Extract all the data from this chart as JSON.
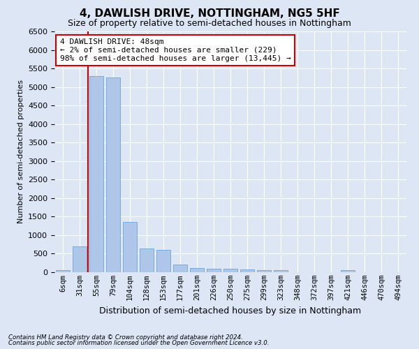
{
  "title": "4, DAWLISH DRIVE, NOTTINGHAM, NG5 5HF",
  "subtitle": "Size of property relative to semi-detached houses in Nottingham",
  "xlabel": "Distribution of semi-detached houses by size in Nottingham",
  "ylabel": "Number of semi-detached properties",
  "categories": [
    "6sqm",
    "31sqm",
    "55sqm",
    "79sqm",
    "104sqm",
    "128sqm",
    "153sqm",
    "177sqm",
    "201sqm",
    "226sqm",
    "250sqm",
    "275sqm",
    "299sqm",
    "323sqm",
    "348sqm",
    "372sqm",
    "397sqm",
    "421sqm",
    "446sqm",
    "470sqm",
    "494sqm"
  ],
  "values": [
    50,
    700,
    5300,
    5250,
    1350,
    650,
    600,
    200,
    120,
    100,
    100,
    70,
    60,
    50,
    0,
    0,
    0,
    60,
    0,
    0,
    0
  ],
  "bar_color": "#aec6e8",
  "bar_edge_color": "#5b9bd5",
  "vline_x_idx": 1,
  "annotation_line1": "4 DAWLISH DRIVE: 48sqm",
  "annotation_line2": "← 2% of semi-detached houses are smaller (229)",
  "annotation_line3": "98% of semi-detached houses are larger (13,445) →",
  "annotation_box_color": "#ffffff",
  "annotation_box_edge": "#cc0000",
  "vline_color": "#cc0000",
  "ylim": [
    0,
    6500
  ],
  "yticks": [
    0,
    500,
    1000,
    1500,
    2000,
    2500,
    3000,
    3500,
    4000,
    4500,
    5000,
    5500,
    6000,
    6500
  ],
  "footer_line1": "Contains HM Land Registry data © Crown copyright and database right 2024.",
  "footer_line2": "Contains public sector information licensed under the Open Government Licence v3.0.",
  "background_color": "#dce6f5",
  "plot_bg_color": "#dce6f5",
  "fig_width": 6.0,
  "fig_height": 5.0,
  "dpi": 100
}
